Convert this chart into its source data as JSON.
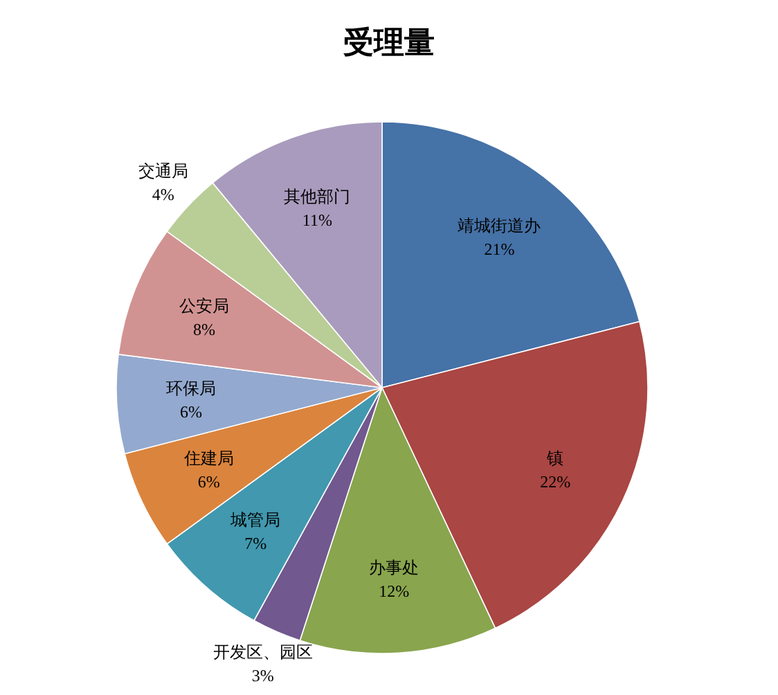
{
  "chart_data": {
    "type": "pie",
    "title": "受理量",
    "categories": [
      "靖城街道办",
      "镇",
      "办事处",
      "开发区、园区",
      "城管局",
      "住建局",
      "环保局",
      "公安局",
      "交通局",
      "其他部门"
    ],
    "values": [
      21,
      22,
      12,
      3,
      7,
      6,
      6,
      8,
      4,
      11
    ],
    "value_labels": [
      "21%",
      "22%",
      "12%",
      "3%",
      "7%",
      "6%",
      "6%",
      "8%",
      "4%",
      "11%"
    ],
    "colors": [
      "#4572a7",
      "#aa4643",
      "#89a54e",
      "#71588f",
      "#4198af",
      "#db843d",
      "#93a9cf",
      "#d19392",
      "#b9cd96",
      "#a99bbd"
    ]
  }
}
